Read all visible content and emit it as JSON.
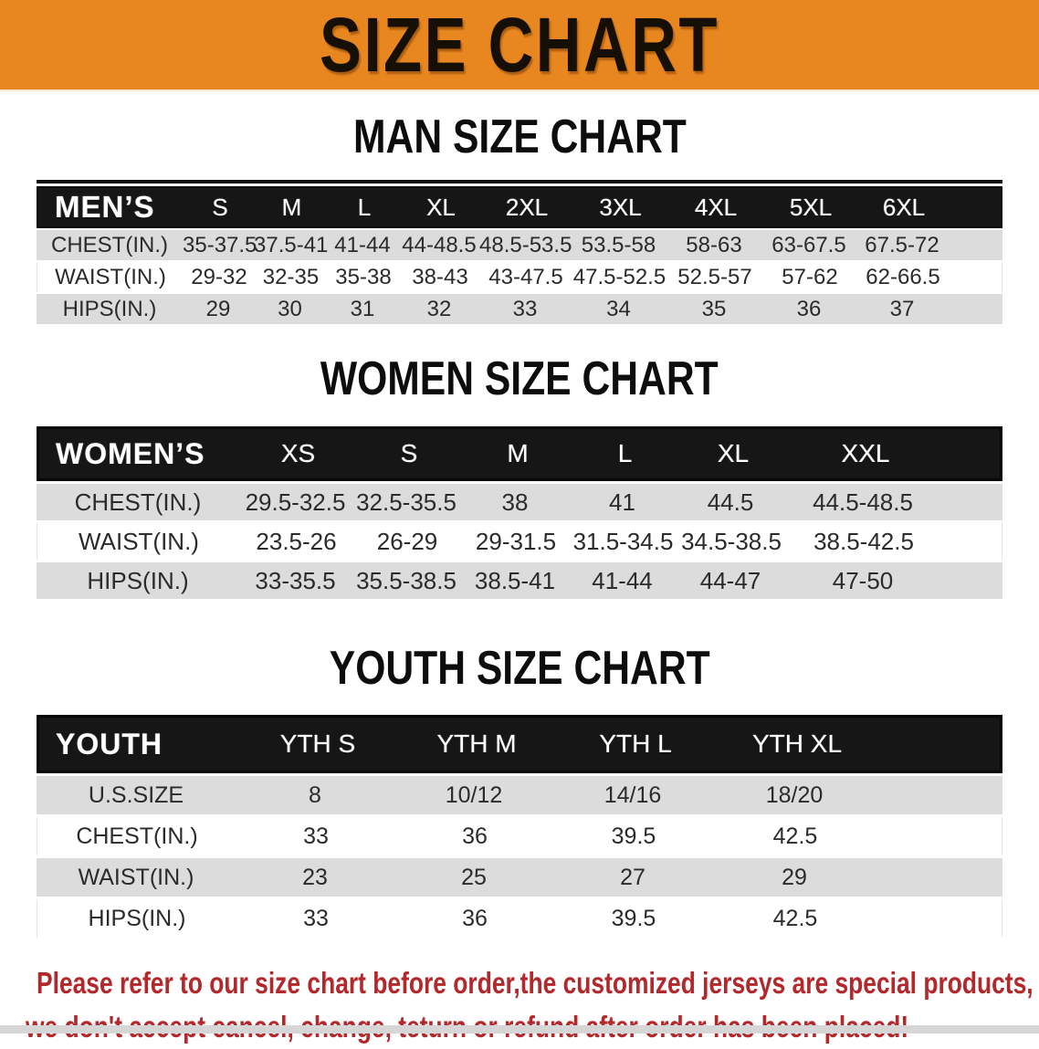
{
  "banner": {
    "title": "SIZE CHART",
    "bg_color": "#E8861F"
  },
  "men": {
    "heading": "MAN SIZE CHART",
    "columns": [
      "MEN’S",
      "S",
      "M",
      "L",
      "XL",
      "2XL",
      "3XL",
      "4XL",
      "5XL",
      "6XL"
    ],
    "rows": [
      {
        "label": "CHEST(IN.)",
        "values": [
          "35-37.5",
          "37.5-41",
          "41-44",
          "44-48.5",
          "48.5-53.5",
          "53.5-58",
          "58-63",
          "63-67.5",
          "67.5-72"
        ]
      },
      {
        "label": "WAIST(IN.)",
        "values": [
          "29-32",
          "32-35",
          "35-38",
          "38-43",
          "43-47.5",
          "47.5-52.5",
          "52.5-57",
          "57-62",
          "62-66.5"
        ]
      },
      {
        "label": "HIPS(IN.)",
        "values": [
          "29",
          "30",
          "31",
          "32",
          "33",
          "34",
          "35",
          "36",
          "37"
        ]
      }
    ]
  },
  "women": {
    "heading": "WOMEN SIZE CHART",
    "columns": [
      "WOMEN’S",
      "XS",
      "S",
      "M",
      "L",
      "XL",
      "XXL"
    ],
    "rows": [
      {
        "label": "CHEST(IN.)",
        "values": [
          "29.5-32.5",
          "32.5-35.5",
          "38",
          "41",
          "44.5",
          "44.5-48.5"
        ]
      },
      {
        "label": "WAIST(IN.)",
        "values": [
          "23.5-26",
          "26-29",
          "29-31.5",
          "31.5-34.5",
          "34.5-38.5",
          "38.5-42.5"
        ]
      },
      {
        "label": "HIPS(IN.)",
        "values": [
          "33-35.5",
          "35.5-38.5",
          "38.5-41",
          "41-44",
          "44-47",
          "47-50"
        ]
      }
    ]
  },
  "youth": {
    "heading": "YOUTH SIZE CHART",
    "columns": [
      "YOUTH",
      "YTH S",
      "YTH M",
      "YTH L",
      "YTH XL"
    ],
    "rows": [
      {
        "label": "U.S.SIZE",
        "values": [
          "8",
          "10/12",
          "14/16",
          "18/20"
        ]
      },
      {
        "label": "CHEST(IN.)",
        "values": [
          "33",
          "36",
          "39.5",
          "42.5"
        ]
      },
      {
        "label": "WAIST(IN.)",
        "values": [
          "23",
          "25",
          "27",
          "29"
        ]
      },
      {
        "label": "HIPS(IN.)",
        "values": [
          "33",
          "36",
          "39.5",
          "42.5"
        ]
      }
    ]
  },
  "disclaimer": {
    "line1": "Please refer to our size chart before order,the customized jerseys are special products,",
    "line2": "we don't accept cancel, change, teturn or refund after order has been placed!",
    "color": "#B2282B"
  },
  "colors": {
    "banner_orange": "#E8861F",
    "header_bar_black": "#161616",
    "row_gray": "#dcdcdc",
    "body_text": "#2b2b2b",
    "disclaimer_red": "#B2282B"
  }
}
